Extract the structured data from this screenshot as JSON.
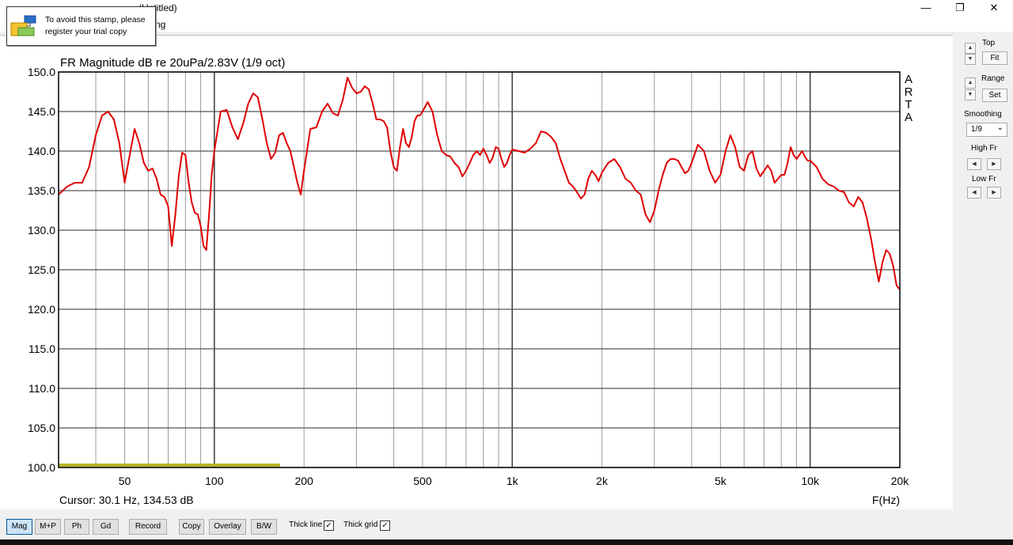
{
  "window": {
    "title": "(Untitled)",
    "minimize_glyph": "—",
    "restore_glyph": "❐",
    "close_glyph": "✕"
  },
  "menu": {
    "partial_item": "ng"
  },
  "stamp": {
    "text_line1": "To avoid this stamp, please",
    "text_line2": "register your trial copy"
  },
  "chart_data": {
    "type": "line",
    "title": "FR Magnitude dB re 20uPa/2.83V (1/9 oct)",
    "xlabel": "F(Hz)",
    "ylabel": "",
    "xscale": "log",
    "xlim": [
      30,
      20000
    ],
    "ylim": [
      100,
      150
    ],
    "xtick_values": [
      50,
      100,
      200,
      500,
      1000,
      2000,
      5000,
      10000,
      20000
    ],
    "xtick_labels": [
      "50",
      "100",
      "200",
      "500",
      "1k",
      "2k",
      "5k",
      "10k",
      "20k"
    ],
    "ytick_values": [
      100,
      105,
      110,
      115,
      120,
      125,
      130,
      135,
      140,
      145,
      150
    ],
    "ytick_labels": [
      "100.0",
      "105.0",
      "110.0",
      "115.0",
      "120.0",
      "125.0",
      "130.0",
      "135.0",
      "140.0",
      "145.0",
      "150.0"
    ],
    "watermark": "ARTA",
    "grid": true,
    "series_color": "#e00000",
    "series": [
      {
        "x": [
          30,
          32,
          34,
          36,
          38,
          40,
          42,
          44,
          46,
          48,
          50,
          52,
          54,
          56,
          58,
          60,
          62,
          64,
          66,
          68,
          70,
          72,
          74,
          76,
          78,
          80,
          82,
          84,
          86,
          88,
          90,
          92,
          94,
          96,
          98,
          100,
          105,
          110,
          115,
          120,
          125,
          130,
          135,
          140,
          145,
          150,
          155,
          160,
          165,
          170,
          175,
          180,
          185,
          190,
          195,
          200,
          210,
          220,
          230,
          240,
          250,
          260,
          270,
          280,
          290,
          300,
          310,
          320,
          330,
          340,
          350,
          360,
          370,
          380,
          390,
          400,
          410,
          420,
          430,
          440,
          450,
          460,
          470,
          480,
          490,
          500,
          520,
          540,
          560,
          580,
          600,
          620,
          640,
          660,
          680,
          700,
          720,
          740,
          760,
          780,
          800,
          820,
          840,
          860,
          880,
          900,
          920,
          940,
          960,
          980,
          1000,
          1050,
          1100,
          1150,
          1200,
          1250,
          1300,
          1350,
          1400,
          1450,
          1500,
          1550,
          1600,
          1650,
          1700,
          1750,
          1800,
          1850,
          1900,
          1950,
          2000,
          2100,
          2200,
          2300,
          2400,
          2500,
          2600,
          2700,
          2800,
          2900,
          3000,
          3100,
          3200,
          3300,
          3400,
          3500,
          3600,
          3700,
          3800,
          3900,
          4000,
          4200,
          4400,
          4600,
          4800,
          5000,
          5200,
          5400,
          5600,
          5800,
          6000,
          6200,
          6400,
          6600,
          6800,
          7000,
          7200,
          7400,
          7600,
          7800,
          8000,
          8200,
          8400,
          8600,
          8800,
          9000,
          9200,
          9400,
          9600,
          9800,
          10000,
          10500,
          11000,
          11500,
          12000,
          12500,
          13000,
          13500,
          14000,
          14500,
          15000,
          15500,
          16000,
          16500,
          17000,
          17500,
          18000,
          18500,
          19000,
          19500,
          20000
        ],
        "y": [
          134.5,
          135.5,
          136.0,
          136.0,
          138.0,
          142.0,
          144.5,
          145.0,
          144.0,
          141.0,
          136.0,
          139.5,
          142.8,
          141.0,
          138.5,
          137.5,
          137.8,
          136.5,
          134.5,
          134.2,
          133.0,
          128.0,
          132.0,
          137.0,
          139.8,
          139.5,
          136.0,
          133.5,
          132.2,
          132.0,
          130.5,
          128.0,
          127.5,
          132.0,
          137.0,
          140.0,
          145.0,
          145.2,
          143.0,
          141.5,
          143.5,
          146.0,
          147.3,
          146.8,
          144.0,
          141.0,
          139.0,
          139.8,
          142.0,
          142.3,
          141.0,
          140.0,
          138.0,
          136.0,
          134.5,
          137.5,
          142.8,
          143.0,
          145.0,
          146.0,
          144.8,
          144.5,
          146.5,
          149.3,
          148.0,
          147.3,
          147.5,
          148.2,
          147.8,
          146.0,
          144.0,
          144.0,
          143.8,
          143.0,
          140.0,
          138.0,
          137.5,
          140.5,
          142.8,
          141.0,
          140.5,
          141.8,
          143.8,
          144.5,
          144.5,
          145.0,
          146.2,
          145.0,
          142.0,
          140.0,
          139.5,
          139.3,
          138.5,
          138.0,
          136.8,
          137.5,
          138.5,
          139.5,
          140.0,
          139.5,
          140.3,
          139.5,
          138.5,
          139.2,
          140.5,
          140.3,
          139.0,
          138.0,
          138.5,
          139.5,
          140.2,
          140.0,
          139.8,
          140.3,
          141.0,
          142.5,
          142.3,
          141.8,
          141.0,
          139.0,
          137.5,
          136.0,
          135.5,
          134.8,
          134.0,
          134.5,
          136.5,
          137.5,
          137.0,
          136.2,
          137.3,
          138.5,
          139.0,
          138.0,
          136.5,
          136.0,
          135.0,
          134.5,
          132.0,
          131.0,
          132.5,
          135.0,
          137.0,
          138.5,
          139.0,
          139.0,
          138.8,
          138.0,
          137.2,
          137.5,
          138.5,
          140.8,
          140.0,
          137.5,
          136.0,
          137.0,
          140.0,
          142.0,
          140.5,
          138.0,
          137.5,
          139.5,
          140.0,
          137.8,
          136.8,
          137.5,
          138.2,
          137.5,
          136.0,
          136.5,
          137.0,
          137.0,
          138.5,
          140.5,
          139.5,
          139.0,
          139.5,
          140.0,
          139.3,
          138.8,
          138.8,
          138.0,
          136.5,
          135.8,
          135.5,
          135.0,
          134.8,
          133.5,
          133.0,
          134.2,
          133.5,
          131.5,
          129.0,
          126.0,
          123.5,
          126.0,
          127.5,
          127.0,
          125.5,
          123.0,
          122.5
        ]
      }
    ]
  },
  "cursor": {
    "readout": "Cursor: 30.1 Hz, 134.53 dB"
  },
  "right_panel": {
    "top_label": "Top",
    "fit_label": "Fit",
    "range_label": "Range",
    "set_label": "Set",
    "smoothing_label": "Smoothing",
    "smoothing_value": "1/9",
    "smoothing_dropdown_glyph": "⌄",
    "highfr_label": "High Fr",
    "lowfr_label": "Low Fr",
    "up_glyph": "▲",
    "down_glyph": "▼",
    "left_glyph": "◀",
    "right_glyph": "▶"
  },
  "bottom_bar": {
    "buttons": [
      "Mag",
      "M+P",
      "Ph",
      "Gd",
      "Record",
      "Copy",
      "Overlay",
      "B/W"
    ],
    "active": "Mag",
    "thick_line_label": "Thick line",
    "thick_grid_label": "Thick grid",
    "thick_line_checked": true,
    "thick_grid_checked": true,
    "check_glyph": "✓"
  }
}
